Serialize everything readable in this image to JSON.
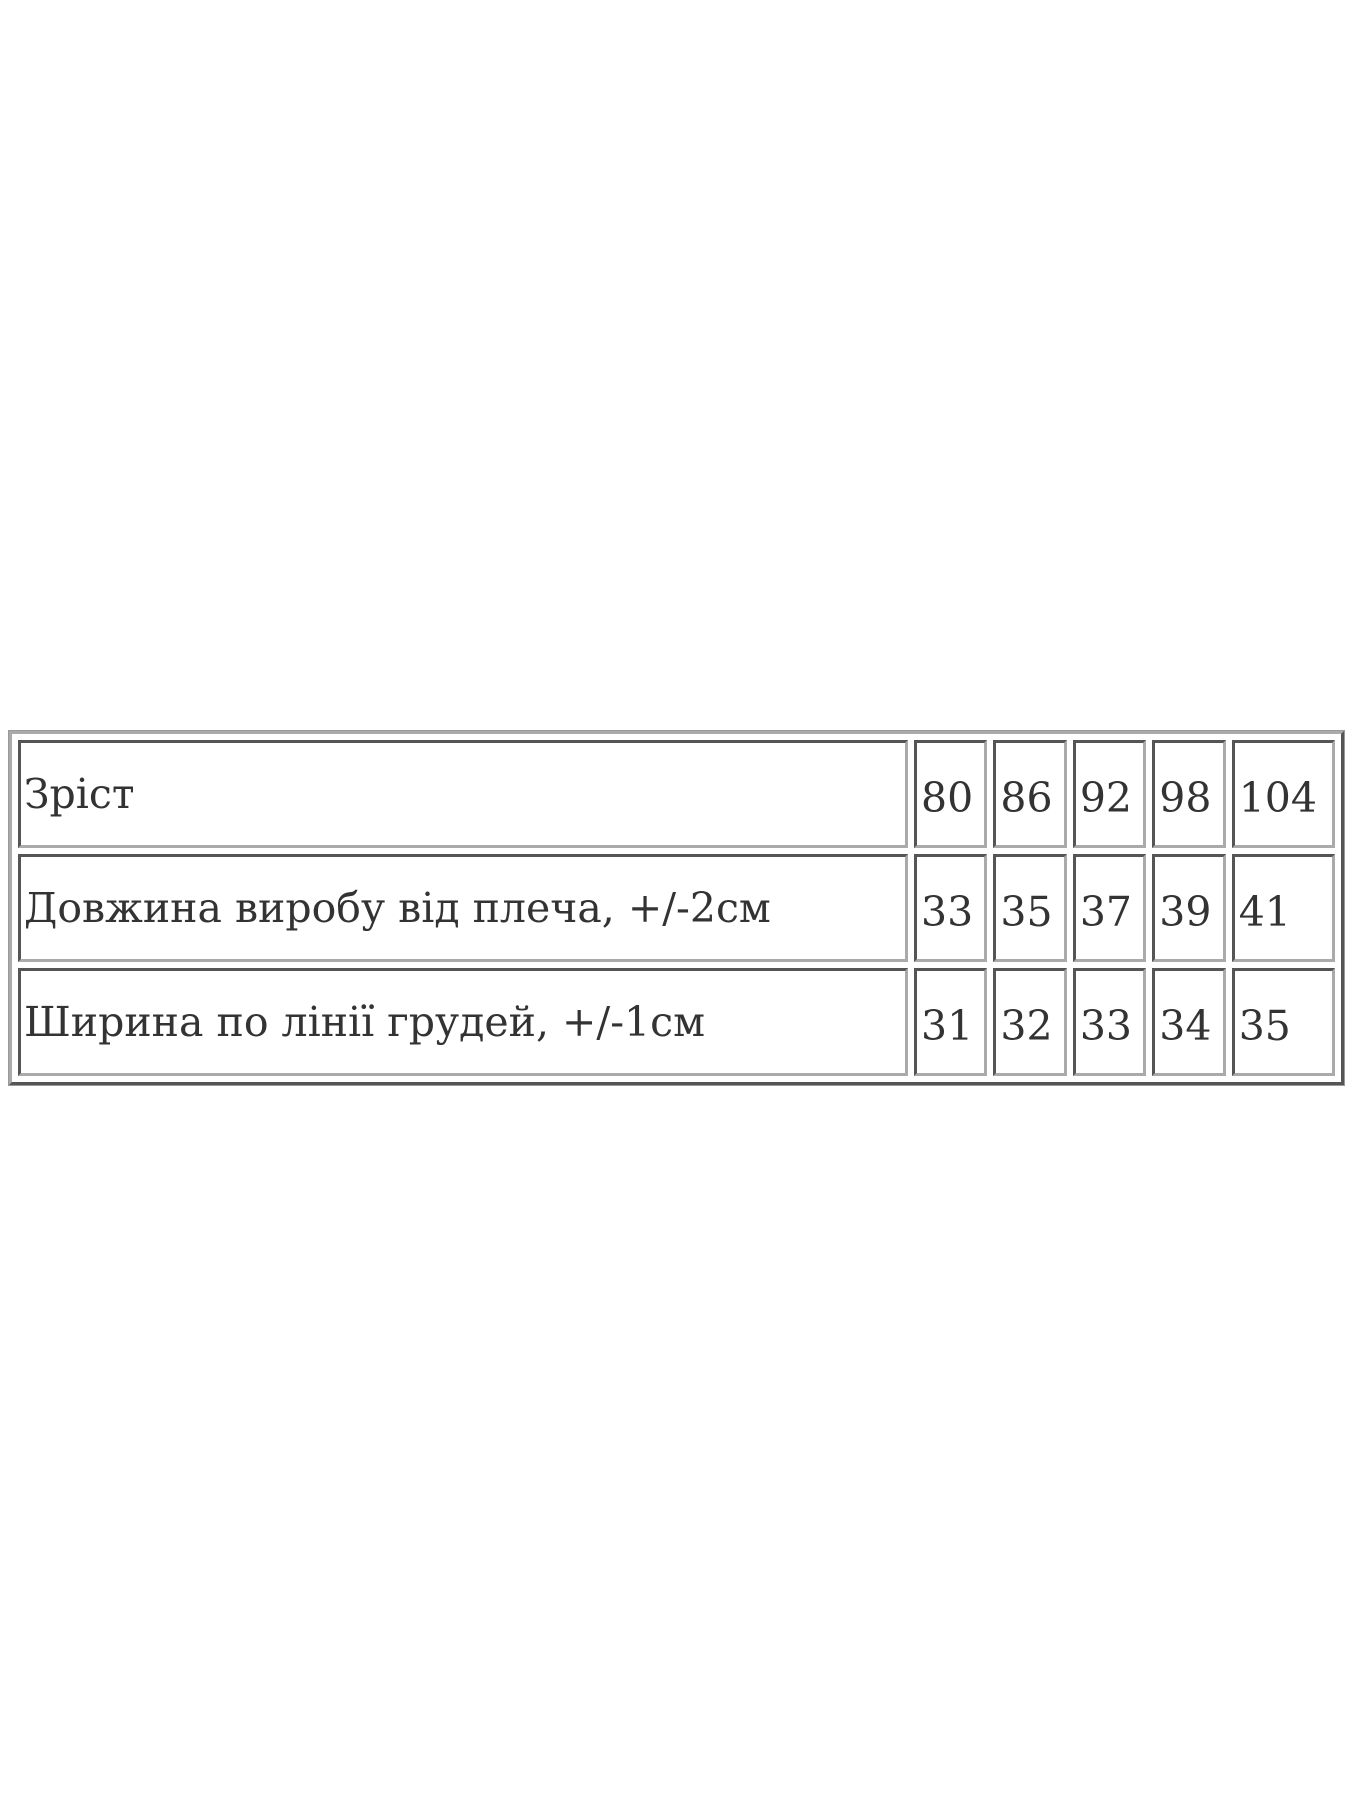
{
  "table": {
    "rows": [
      {
        "label": "Зріст",
        "values": [
          "80",
          "86",
          "92",
          "98",
          "104"
        ]
      },
      {
        "label": "Довжина виробу від плеча, +/-2см",
        "values": [
          "33",
          "35",
          "37",
          "39",
          "41"
        ]
      },
      {
        "label": "Ширина по лінії грудей, +/-1см",
        "values": [
          "31",
          "32",
          "33",
          "34",
          "35"
        ]
      }
    ]
  }
}
